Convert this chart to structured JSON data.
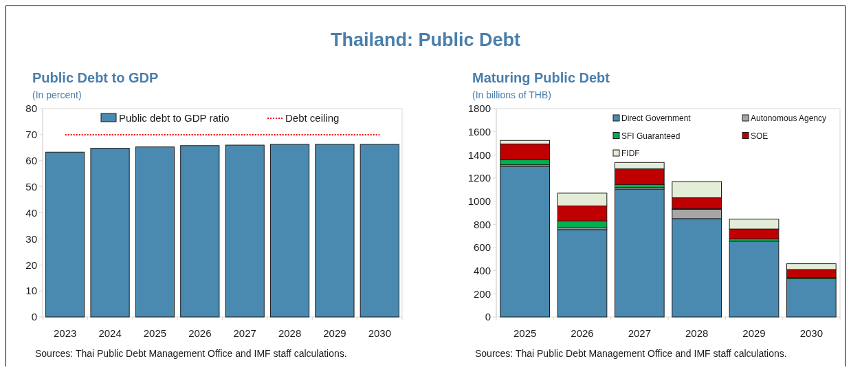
{
  "chart_data": [
    {
      "type": "other",
      "title": "Thailand: Public Debt"
    },
    {
      "type": "bar",
      "title": "Public Debt to GDP",
      "subtitle": "(In percent)",
      "categories": [
        "2023",
        "2024",
        "2025",
        "2026",
        "2027",
        "2028",
        "2029",
        "2030"
      ],
      "series": [
        {
          "name": "Public debt to GDP ratio",
          "color": "#4a8ab0",
          "values": [
            63.3,
            64.8,
            65.3,
            65.8,
            66.0,
            66.3,
            66.3,
            66.3
          ]
        }
      ],
      "ylim": [
        0,
        80
      ],
      "yticks": [
        0,
        10,
        20,
        30,
        40,
        50,
        60,
        70,
        80
      ],
      "ref_lines": [
        {
          "axis": "y",
          "value": 70,
          "label": "Debt ceiling",
          "color": "#ff0000",
          "line_style": "dotted"
        }
      ],
      "legend": "top",
      "grid": false,
      "annotations": [
        "Sources: Thai Public Debt Management Office and IMF staff calculations."
      ]
    },
    {
      "type": "bar",
      "stacked": true,
      "title": "Maturing Public Debt",
      "subtitle": "(In billions of THB)",
      "categories": [
        "2025",
        "2026",
        "2027",
        "2028",
        "2029",
        "2030"
      ],
      "series": [
        {
          "name": "Direct Government",
          "color": "#4a8ab0",
          "values": [
            1300,
            755,
            1105,
            850,
            655,
            330
          ]
        },
        {
          "name": "Autonomous Agency",
          "color": "#a6a6a6",
          "values": [
            15,
            15,
            15,
            80,
            0,
            0
          ]
        },
        {
          "name": "SFI Guaranteed",
          "color": "#00b050",
          "values": [
            45,
            60,
            25,
            5,
            20,
            10
          ]
        },
        {
          "name": "SOE",
          "color": "#c00000",
          "values": [
            135,
            130,
            135,
            95,
            85,
            70
          ]
        },
        {
          "name": "FIDF",
          "color": "#e2ecd6",
          "values": [
            30,
            110,
            55,
            140,
            85,
            50
          ]
        }
      ],
      "ylim": [
        0,
        1800
      ],
      "yticks": [
        0,
        200,
        400,
        600,
        800,
        1000,
        1200,
        1400,
        1600,
        1800
      ],
      "legend": "top right",
      "grid": false,
      "annotations": [
        "Sources: Thai Public Debt Management Office and IMF staff calculations."
      ]
    }
  ]
}
